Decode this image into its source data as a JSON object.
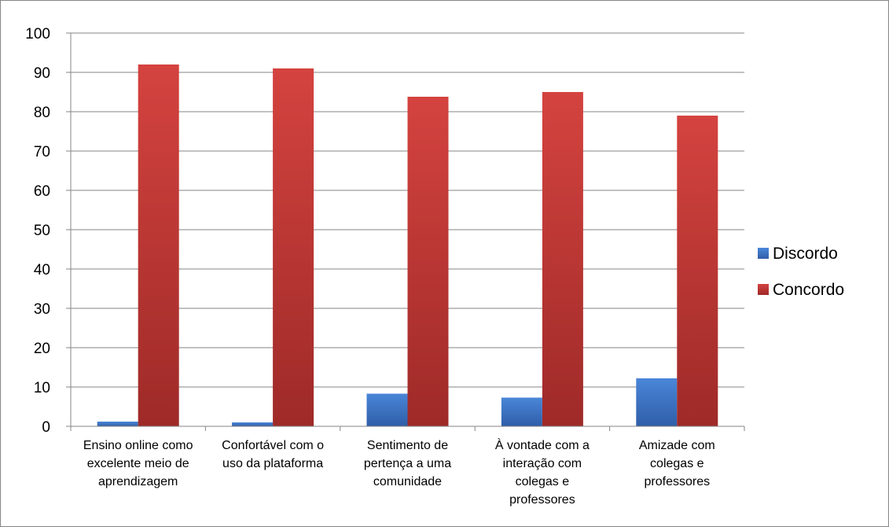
{
  "chart_data": {
    "type": "bar",
    "categories": [
      [
        "Ensino online como",
        "excelente meio de",
        "aprendizagem"
      ],
      [
        "Confortável com o",
        "uso da plataforma"
      ],
      [
        "Sentimento de",
        "pertença a uma",
        "comunidade"
      ],
      [
        "À vontade com a",
        "interação com",
        "colegas e",
        "professores"
      ],
      [
        "Amizade com",
        "colegas e",
        "professores"
      ]
    ],
    "series": [
      {
        "name": "Discordo",
        "color": "#3b6fbf",
        "values": [
          1.2,
          1.0,
          8.3,
          7.3,
          12.2
        ]
      },
      {
        "name": "Concordo",
        "color": "#be3a37",
        "values": [
          92,
          91,
          83.8,
          85,
          79
        ]
      }
    ],
    "ylim": [
      0,
      100
    ],
    "yticks": [
      0,
      10,
      20,
      30,
      40,
      50,
      60,
      70,
      80,
      90,
      100
    ],
    "grid": true,
    "legend_position": "right"
  }
}
